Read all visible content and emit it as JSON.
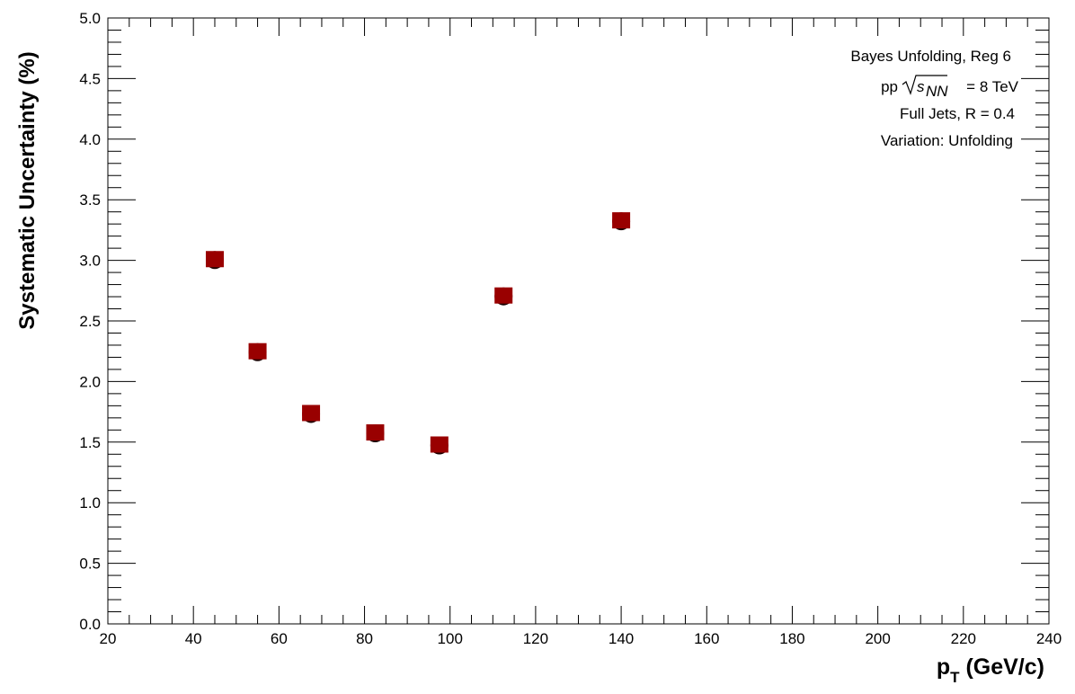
{
  "chart_data": {
    "type": "scatter",
    "xlabel_main": "p",
    "xlabel_sub": "T",
    "xlabel_rest": " (GeV/c)",
    "ylabel": "Systematic Uncertainty (%)",
    "xlim": [
      20,
      240
    ],
    "ylim": [
      0,
      5
    ],
    "x_major_ticks": [
      20,
      40,
      60,
      80,
      100,
      120,
      140,
      160,
      180,
      200,
      220,
      240
    ],
    "x_tick_labels": [
      "20",
      "40",
      "60",
      "80",
      "100",
      "120",
      "140",
      "160",
      "180",
      "200",
      "220",
      "240"
    ],
    "y_major_ticks": [
      0,
      0.5,
      1,
      1.5,
      2,
      2.5,
      3,
      3.5,
      4,
      4.5,
      5
    ],
    "y_tick_labels": [
      "0.0",
      "0.5",
      "1.0",
      "1.5",
      "2.0",
      "2.5",
      "3.0",
      "3.5",
      "4.0",
      "4.5",
      "5.0"
    ],
    "grid": false,
    "marker_color": "#990000",
    "points": [
      {
        "x": 45,
        "y": 3.01
      },
      {
        "x": 55,
        "y": 2.25
      },
      {
        "x": 67.5,
        "y": 1.74
      },
      {
        "x": 82.5,
        "y": 1.58
      },
      {
        "x": 97.5,
        "y": 1.48
      },
      {
        "x": 112.5,
        "y": 2.71
      },
      {
        "x": 140,
        "y": 3.33
      }
    ],
    "annotations": {
      "line1": "Bayes Unfolding, Reg 6",
      "line2_prefix": "pp ",
      "line2_s": "s",
      "line2_sub": "NN",
      "line2_suffix": " = 8 TeV",
      "line3": "Full Jets, R = 0.4",
      "line4": "Variation: Unfolding"
    }
  }
}
